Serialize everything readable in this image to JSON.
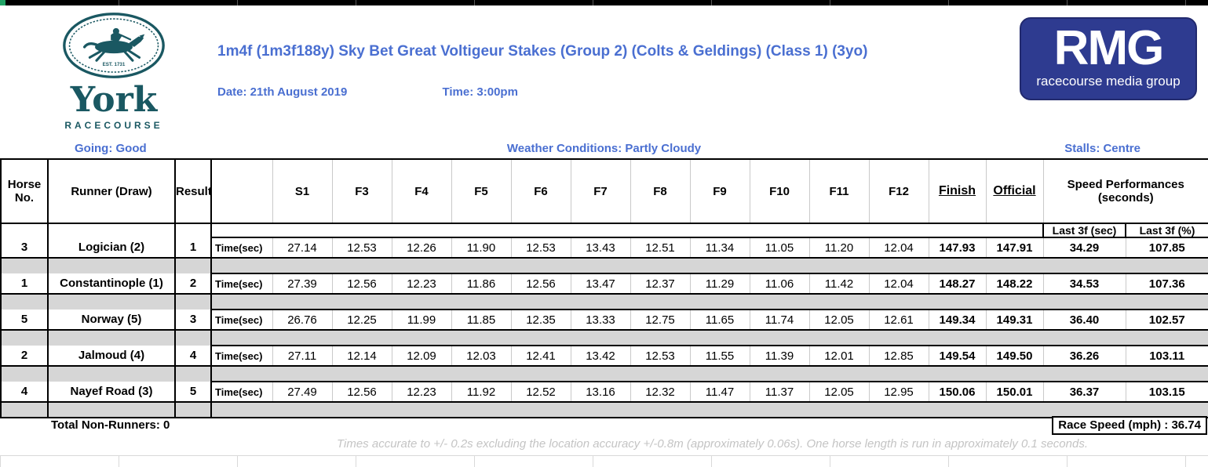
{
  "colors": {
    "accent_blue": "#4a6fd1",
    "york_teal": "#1a5862",
    "rmg_blue": "#2e3b90",
    "separator_gray": "#d6d6d6"
  },
  "branding": {
    "york": {
      "name": "York",
      "subtitle": "RACECOURSE",
      "established": "EST. 1731"
    },
    "rmg": {
      "acronym": "RMG",
      "subtitle": "racecourse media group"
    }
  },
  "header": {
    "title": "1m4f (1m3f188y) Sky Bet Great Voltigeur Stakes (Group 2) (Colts & Geldings) (Class 1) (3yo)",
    "date": "Date: 21th August 2019",
    "time": "Time: 3:00pm"
  },
  "conditions": {
    "going": "Going: Good",
    "weather": "Weather Conditions: Partly Cloudy",
    "stalls": "Stalls: Centre"
  },
  "table": {
    "headers": [
      "Horse No.",
      "Runner (Draw)",
      "Result",
      "",
      "S1",
      "F3",
      "F4",
      "F5",
      "F6",
      "F7",
      "F8",
      "F9",
      "F10",
      "F11",
      "F12",
      "Finish",
      "Official"
    ],
    "speed_header": "Speed Performances (seconds)",
    "sub_headers": [
      "Last 3f (sec)",
      "Last 3f (%)"
    ],
    "rows": [
      {
        "horse_no": "3",
        "runner": "Logician (2)",
        "result": "1",
        "time_label": "Time(sec)",
        "sectionals": [
          "27.14",
          "12.53",
          "12.26",
          "11.90",
          "12.53",
          "13.43",
          "12.51",
          "11.34",
          "11.05",
          "11.20",
          "12.04"
        ],
        "finish": "147.93",
        "official": "147.91",
        "last3f_sec": "34.29",
        "last3f_pct": "107.85"
      },
      {
        "horse_no": "1",
        "runner": "Constantinople (1)",
        "result": "2",
        "time_label": "Time(sec)",
        "sectionals": [
          "27.39",
          "12.56",
          "12.23",
          "11.86",
          "12.56",
          "13.47",
          "12.37",
          "11.29",
          "11.06",
          "11.42",
          "12.04"
        ],
        "finish": "148.27",
        "official": "148.22",
        "last3f_sec": "34.53",
        "last3f_pct": "107.36"
      },
      {
        "horse_no": "5",
        "runner": "Norway (5)",
        "result": "3",
        "time_label": "Time(sec)",
        "sectionals": [
          "26.76",
          "12.25",
          "11.99",
          "11.85",
          "12.35",
          "13.33",
          "12.75",
          "11.65",
          "11.74",
          "12.05",
          "12.61"
        ],
        "finish": "149.34",
        "official": "149.31",
        "last3f_sec": "36.40",
        "last3f_pct": "102.57"
      },
      {
        "horse_no": "2",
        "runner": "Jalmoud (4)",
        "result": "4",
        "time_label": "Time(sec)",
        "sectionals": [
          "27.11",
          "12.14",
          "12.09",
          "12.03",
          "12.41",
          "13.42",
          "12.53",
          "11.55",
          "11.39",
          "12.01",
          "12.85"
        ],
        "finish": "149.54",
        "official": "149.50",
        "last3f_sec": "36.26",
        "last3f_pct": "103.11"
      },
      {
        "horse_no": "4",
        "runner": "Nayef Road (3)",
        "result": "5",
        "time_label": "Time(sec)",
        "sectionals": [
          "27.49",
          "12.56",
          "12.23",
          "11.92",
          "12.52",
          "13.16",
          "12.32",
          "11.47",
          "11.37",
          "12.05",
          "12.95"
        ],
        "finish": "150.06",
        "official": "150.01",
        "last3f_sec": "36.37",
        "last3f_pct": "103.15"
      }
    ]
  },
  "footer": {
    "non_runners": "Total Non-Runners: 0",
    "race_speed": "Race Speed (mph) : 36.74",
    "note": "Times accurate to +/- 0.2s excluding the location accuracy +/-0.8m (approximately 0.06s). One horse length is run in approximately 0.1 seconds."
  }
}
